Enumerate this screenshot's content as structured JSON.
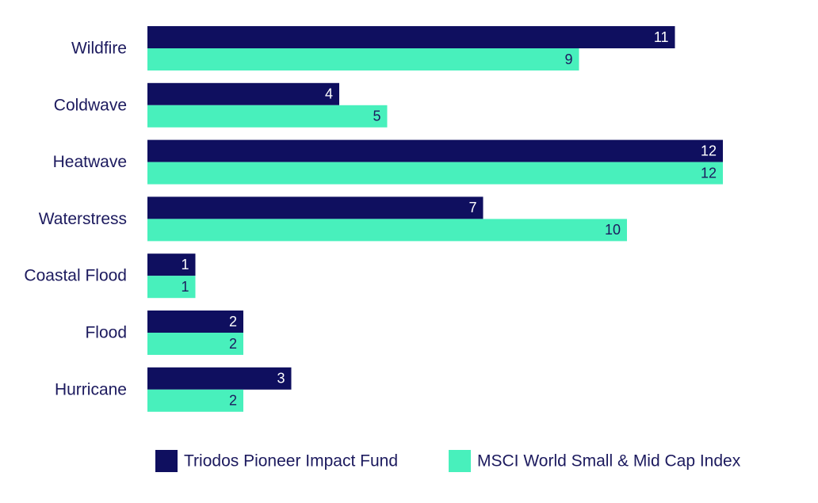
{
  "chart_data": {
    "type": "bar",
    "orientation": "horizontal",
    "categories": [
      "Wildfire",
      "Coldwave",
      "Heatwave",
      "Waterstress",
      "Coastal Flood",
      "Flood",
      "Hurricane"
    ],
    "series": [
      {
        "name": "Triodos Pioneer Impact Fund",
        "color": "#0f0f5f",
        "label_color": "#ffffff",
        "values": [
          11,
          4,
          12,
          7,
          1,
          2,
          3
        ]
      },
      {
        "name": "MSCI World Small & Mid Cap Index",
        "color": "#48f0bc",
        "label_color": "#1c1a5e",
        "values": [
          9,
          5,
          12,
          10,
          1,
          2,
          2
        ]
      }
    ],
    "xlim": [
      0,
      12
    ],
    "grid": false,
    "legend_position": "bottom",
    "title": "",
    "xlabel": "",
    "ylabel": ""
  }
}
